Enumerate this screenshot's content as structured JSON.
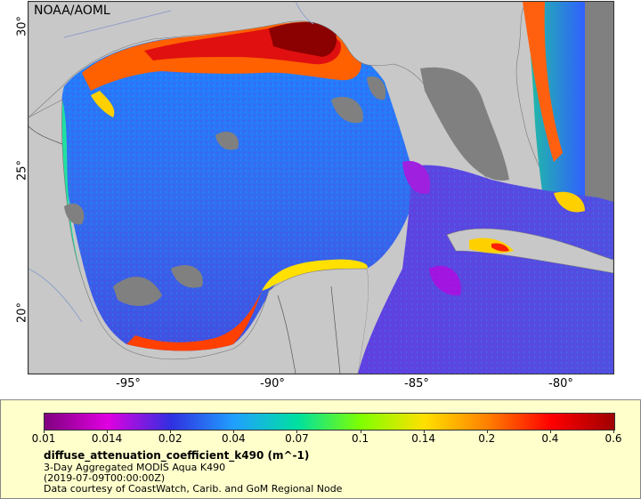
{
  "map": {
    "credit": "NOAA/AOML",
    "lat_labels": [
      "30°",
      "25°",
      "20°"
    ],
    "lon_labels": [
      "-95°",
      "-90°",
      "-85°",
      "-80°"
    ],
    "colors": {
      "land": "#c8c8c8",
      "no_data": "#808080",
      "borders": "#555555",
      "rivers": "#8fa0c8"
    }
  },
  "legend": {
    "colorbar_ticks": [
      "0.01",
      "0.014",
      "0.02",
      "0.04",
      "0.07",
      "0.1",
      "0.14",
      "0.2",
      "0.4",
      "0.6"
    ],
    "title": "diffuse_attenuation_coefficient_k490 (m^-1)",
    "line1": "3-Day Aggregated MODIS Aqua K490",
    "line2": "(2019-07-09T00:00:00Z)",
    "line3": "Data courtesy of CoastWatch, Carib. and GoM Regional Node",
    "colors": [
      "#800080",
      "#e000e0",
      "#3030e0",
      "#20a0ff",
      "#00e0a0",
      "#80ff00",
      "#ffe000",
      "#ff8000",
      "#ff0000",
      "#a00000"
    ]
  }
}
